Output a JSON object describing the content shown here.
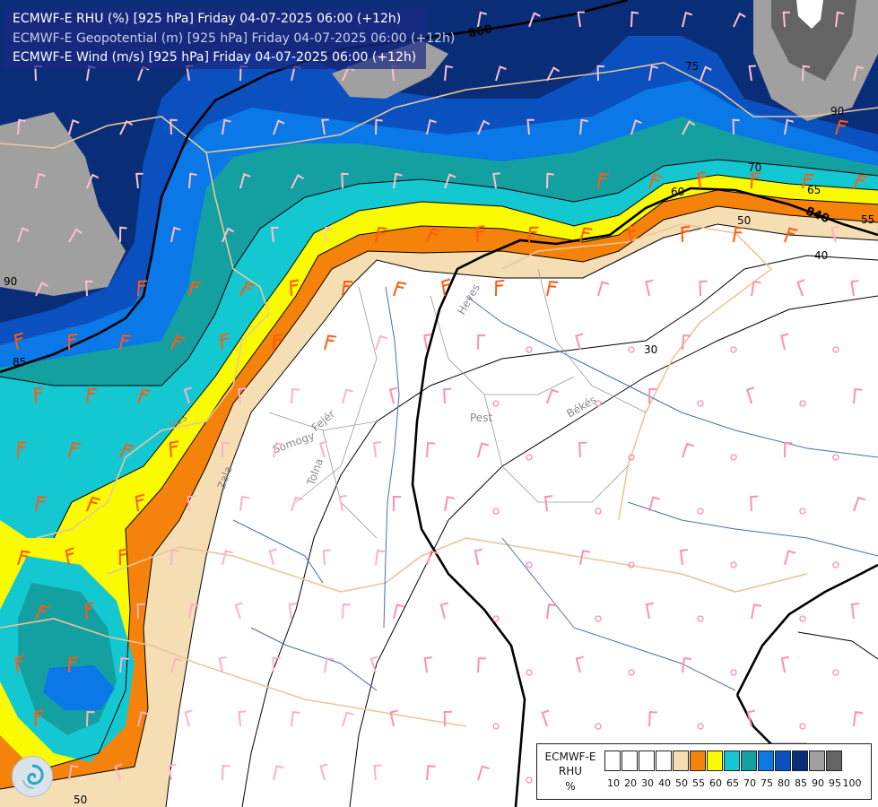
{
  "titles": [
    {
      "text": "ECMWF-E RHU (%) [925 hPa] Friday 04-07-2025 06:00 (+12h)",
      "color": "#ffffff"
    },
    {
      "text": "ECMWF-E Geopotential (m) [925 hPa] Friday 04-07-2025 06:00 (+12h)",
      "color": "#c9cfe6"
    },
    {
      "text": "ECMWF-E Wind (m/s) [925 hPa] Friday 04-07-2025 06:00 (+12h)",
      "color": "#ffffff"
    }
  ],
  "legend": {
    "name_lines": [
      "ECMWF-E",
      "RHU",
      "%"
    ],
    "ticks": [
      "10",
      "20",
      "30",
      "40",
      "50",
      "55",
      "60",
      "65",
      "70",
      "75",
      "80",
      "85",
      "90",
      "95",
      "100"
    ],
    "colors": [
      "#ffffff",
      "#ffffff",
      "#ffffff",
      "#ffffff",
      "#f5deb3",
      "#f5820a",
      "#fafa00",
      "#14c8d2",
      "#14a0a0",
      "#0a78e6",
      "#0a50be",
      "#0a2d78",
      "#a0a0a0",
      "#646464"
    ]
  },
  "contour_labels": {
    "rhu": [
      "90",
      "85",
      "75",
      "90",
      "70",
      "65",
      "60",
      "55",
      "50",
      "40",
      "30",
      "50"
    ],
    "geopotential": [
      "860",
      "840"
    ]
  },
  "place_labels": [
    "Heves",
    "Pest",
    "Békés",
    "Somogy",
    "Fejér",
    "Tolna",
    "Zala",
    "Vas"
  ],
  "logo_icon": "ecmwf-logo-icon"
}
